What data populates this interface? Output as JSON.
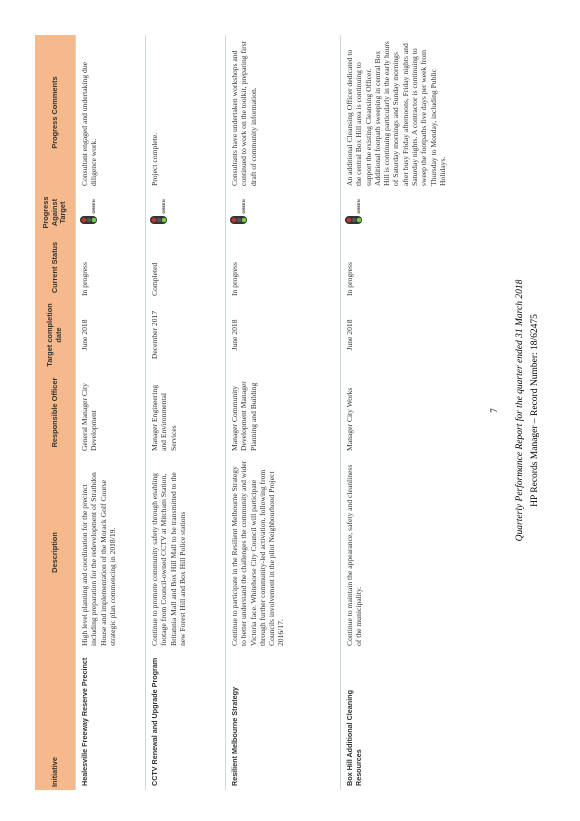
{
  "table": {
    "header": [
      "Initiative",
      "Description",
      "Responsible Officer",
      "Target completion date",
      "Current Status",
      "Progress Against Target",
      "Progress Comments"
    ],
    "rows": [
      [
        "Healesville Freeway Reserve Precinct",
        "High level planning and coordination for the precinct including preparation for the redevelopment of Strathdon House and implementation of the Morack Golf Course strategic plan commencing in 2018/19.",
        "General Manager City Development",
        "June 2018",
        "In progress",
        "GREEN",
        "Consultant engaged and undertaking due diligence work."
      ],
      [
        "CCTV Renewal and Upgrade Program",
        "Continue to promote community safety through enabling footage from Council-owned CCTV at Mitcham Station, Britannia Mall and Box Hill Mall to be transmitted to the new Forest Hill and Box Hill Police stations",
        "Manager Engineering and Environmental Services",
        "December 2017",
        "Completed",
        "GREEN",
        "Project complete."
      ],
      [
        "Resilient Melbourne Strategy",
        "Continue to participate in the Resilient Melbourne Strategy to better understand the challenges the community and wider Victoria face. Whitehorse City Council will participate through further community-led activation, following from Councils involvement in the pilot Neighbourhood Project 2016/17.",
        "Manager Community Development Manager Planning and Building",
        "June 2018",
        "In progress",
        "GREEN",
        "Consultants have undertaken workshops and continued to work on the toolkit, preparing first draft of community information."
      ],
      [
        "Box Hill Additional Cleaning Resources",
        "Continue to maintain the appearance, safety and cleanliness of the municipality.",
        "Manager City Works",
        "June 2018",
        "In progress",
        "GREEN",
        "An additional Cleansing Officer dedicated to the central Box Hill area is continuing to support the existing Cleansing Officer. Additional footpath sweeping in central Box Hill is continuing particularly in the early hours of Saturday mornings and Sunday mornings after busy Friday afternoons, Friday nights and Saturday nights. A contractor is continuing to sweep the footpaths five days per week from Thursday to Monday, including Public Holidays."
      ]
    ]
  },
  "footer": {
    "page": "7",
    "line1": "Quarterly Performance Report for the quarter ended 31 March 2018",
    "line2": "HP Records Manager – Record Number: 18/62475"
  }
}
